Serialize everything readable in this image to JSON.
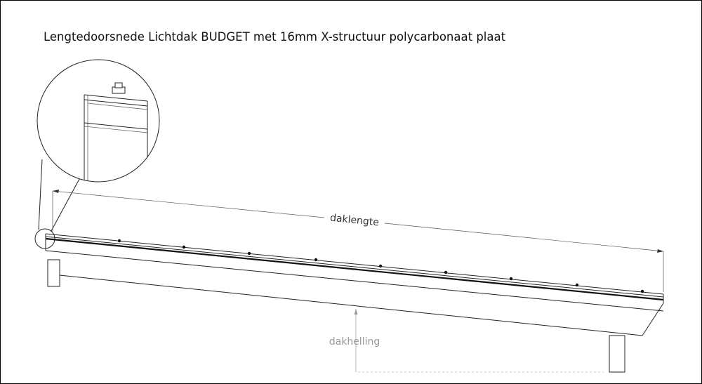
{
  "title": "Lengtedoorsnede Lichtdak BUDGET met 16mm X-structuur polycarbonaat plaat",
  "labels": {
    "length": "daklengte",
    "slope": "dakhelling"
  }
}
